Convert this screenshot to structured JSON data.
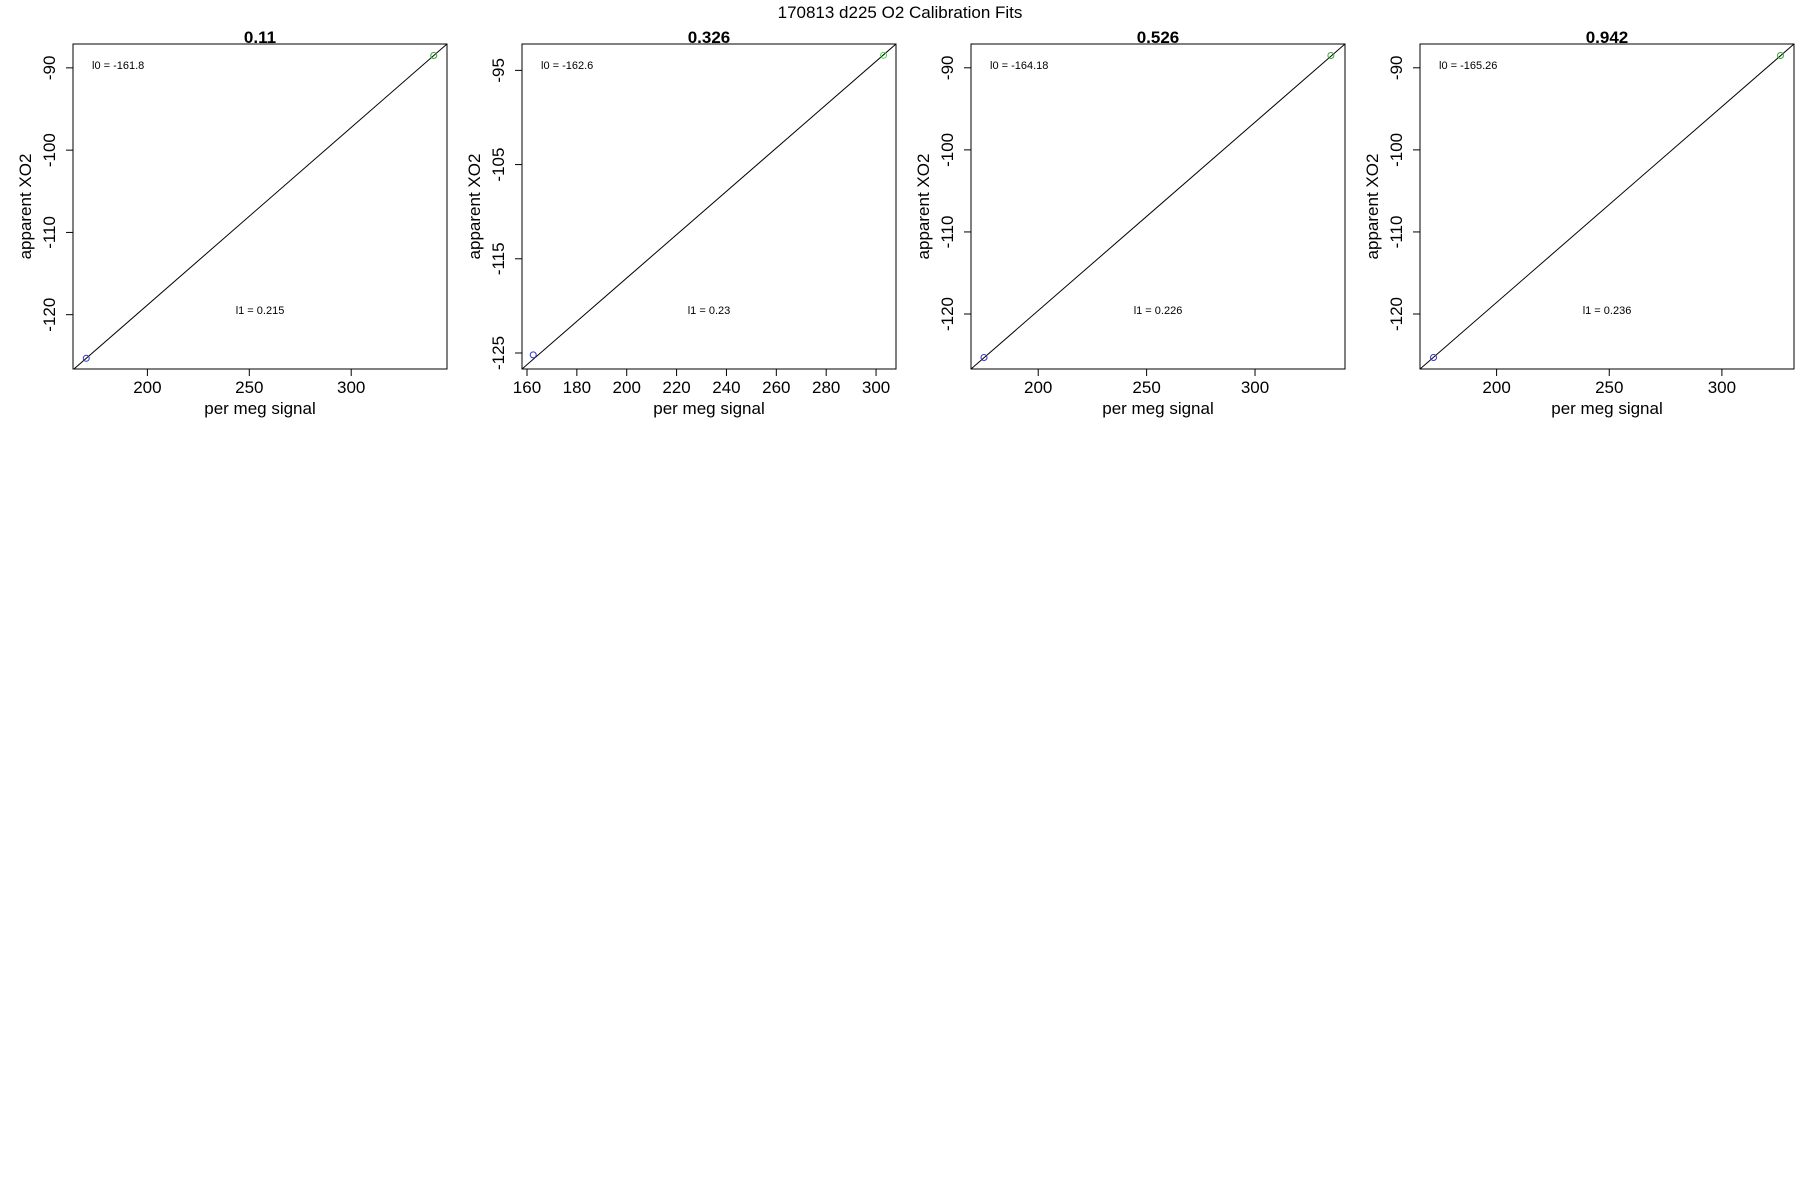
{
  "figure_title": "170813   d225   O2 Calibration Fits",
  "chart_data": [
    {
      "type": "scatter",
      "title": "0.11",
      "xlabel": "per meg signal",
      "ylabel": "apparent XO2",
      "xlim": [
        163.5,
        347
      ],
      "ylim": [
        -126.6,
        -87.1
      ],
      "xticks": [
        200,
        250,
        300
      ],
      "xtick_labels": [
        "200",
        "250",
        "300"
      ],
      "yticks": [
        -90,
        -100,
        -110,
        -120
      ],
      "ytick_labels": [
        "-90",
        "-100",
        "-110",
        "-120"
      ],
      "points": [
        {
          "x": 170,
          "y": -125.3,
          "color": "#3333cc"
        },
        {
          "x": 340.5,
          "y": -88.5,
          "color": "#33aa33"
        }
      ],
      "fit_line": {
        "x1": 163.5,
        "y1": -126.7,
        "x2": 347,
        "y2": -87.1
      },
      "annotations": {
        "l0": "l0 =  -161.8",
        "l1": "l1 =  0.215"
      }
    },
    {
      "type": "scatter",
      "title": "0.326",
      "xlabel": "per meg signal",
      "ylabel": "apparent XO2",
      "xlim": [
        158,
        308
      ],
      "ylim": [
        -126.7,
        -92.2
      ],
      "xticks": [
        160,
        180,
        200,
        220,
        240,
        260,
        280,
        300
      ],
      "xtick_labels": [
        "160",
        "180",
        "200",
        "220",
        "240",
        "260",
        "280",
        "300"
      ],
      "yticks": [
        -95,
        -105,
        -115,
        -125
      ],
      "ytick_labels": [
        "-95",
        "-105",
        "-115",
        "-125"
      ],
      "points": [
        {
          "x": 162.5,
          "y": -125.2,
          "color": "#3333cc"
        },
        {
          "x": 303,
          "y": -93.4,
          "color": "#44dd44"
        }
      ],
      "fit_line": {
        "x1": 158,
        "y1": -126.7,
        "x2": 308,
        "y2": -92.2
      },
      "annotations": {
        "l0": "l0 =  -162.6",
        "l1": "l1 =  0.23"
      }
    },
    {
      "type": "scatter",
      "title": "0.526",
      "xlabel": "per meg signal",
      "ylabel": "apparent XO2",
      "xlim": [
        169,
        341.5
      ],
      "ylim": [
        -126.7,
        -87.1
      ],
      "xticks": [
        200,
        250,
        300
      ],
      "xtick_labels": [
        "200",
        "250",
        "300"
      ],
      "yticks": [
        -90,
        -100,
        -110,
        -120
      ],
      "ytick_labels": [
        "-90",
        "-100",
        "-110",
        "-120"
      ],
      "points": [
        {
          "x": 175,
          "y": -125.3,
          "color": "#3333cc"
        },
        {
          "x": 335,
          "y": -88.5,
          "color": "#33aa33"
        }
      ],
      "fit_line": {
        "x1": 169,
        "y1": -126.7,
        "x2": 341.5,
        "y2": -87.1
      },
      "annotations": {
        "l0": "l0 =  -164.18",
        "l1": "l1 =  0.226"
      }
    },
    {
      "type": "scatter",
      "title": "0.942",
      "xlabel": "per meg signal",
      "ylabel": "apparent XO2",
      "xlim": [
        166,
        332
      ],
      "ylim": [
        -126.7,
        -87.1
      ],
      "xticks": [
        200,
        250,
        300
      ],
      "xtick_labels": [
        "200",
        "250",
        "300"
      ],
      "yticks": [
        -90,
        -100,
        -110,
        -120
      ],
      "ytick_labels": [
        "-90",
        "-100",
        "-110",
        "-120"
      ],
      "points": [
        {
          "x": 172,
          "y": -125.3,
          "color": "#3333cc"
        },
        {
          "x": 326,
          "y": -88.5,
          "color": "#33aa33"
        }
      ],
      "fit_line": {
        "x1": 166,
        "y1": -126.7,
        "x2": 332,
        "y2": -87.1
      },
      "annotations": {
        "l0": "l0 =  -165.26",
        "l1": "l1 =  0.236"
      }
    }
  ]
}
